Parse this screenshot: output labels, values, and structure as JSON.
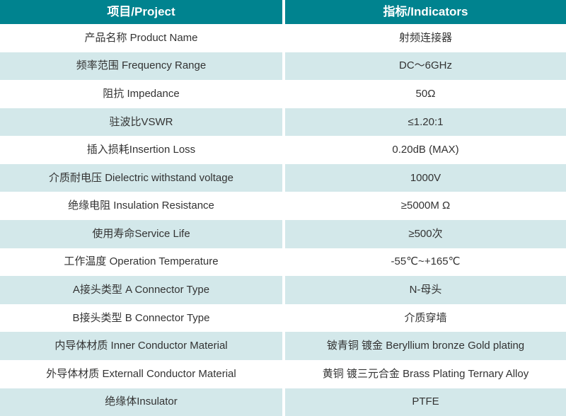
{
  "colors": {
    "header_bg": "#00838F",
    "header_fg": "#FFFFFF",
    "row_alt_bg": "#D3E8EA",
    "text": "#333333"
  },
  "table": {
    "header": {
      "project": "项目/Project",
      "indicator": "指标/Indicators"
    },
    "rows": [
      {
        "project": "产品名称 Product Name",
        "indicator": "射频连接器"
      },
      {
        "project": "频率范围 Frequency Range",
        "indicator": "DC～6GHz"
      },
      {
        "project": "阻抗 Impedance",
        "indicator": "50Ω"
      },
      {
        "project": "驻波比VSWR",
        "indicator": "≤1.20:1"
      },
      {
        "project": "插入损耗Insertion Loss",
        "indicator": "0.20dB (MAX)"
      },
      {
        "project": "介质耐电压 Dielectric withstand voltage",
        "indicator": "1000V"
      },
      {
        "project": "绝缘电阻 Insulation Resistance",
        "indicator": "≥5000M Ω"
      },
      {
        "project": "使用寿命Service Life",
        "indicator": "≥500次"
      },
      {
        "project": "工作温度 Operation Temperature",
        "indicator": "-55℃~+165℃"
      },
      {
        "project": "A接头类型 A Connector Type",
        "indicator": "N-母头"
      },
      {
        "project": "B接头类型 B Connector Type",
        "indicator": "介质穿墙"
      },
      {
        "project": "内导体材质 Inner Conductor Material",
        "indicator": "铍青铜 镀金 Beryllium bronze Gold plating"
      },
      {
        "project": "外导体材质 Externall Conductor Material",
        "indicator": "黄铜 镀三元合金 Brass Plating Ternary Alloy"
      },
      {
        "project": "绝缘体Insulator",
        "indicator": "PTFE"
      }
    ]
  }
}
